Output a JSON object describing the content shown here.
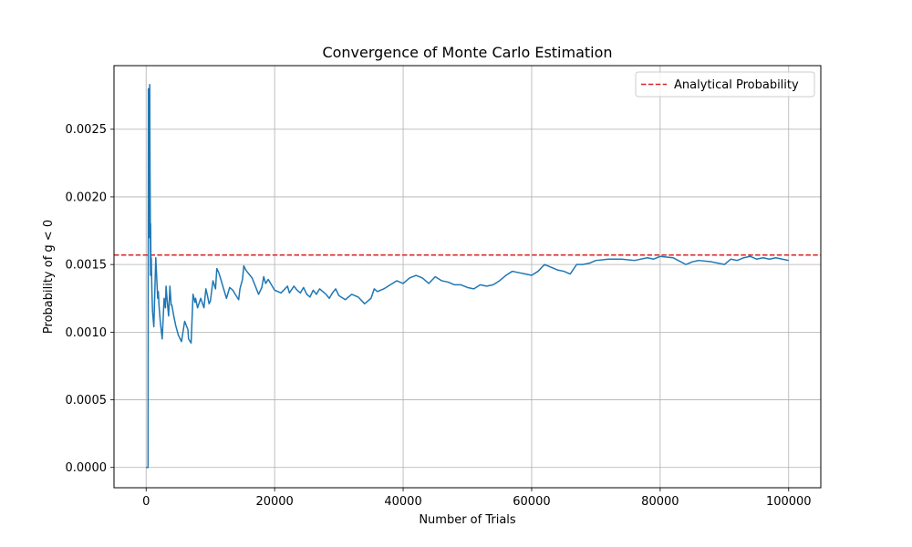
{
  "chart_data": {
    "type": "line",
    "title": "Convergence of Monte Carlo Estimation",
    "xlabel": "Number of Trials",
    "ylabel": "Probability of g < 0",
    "xlim": [
      -5000,
      105000
    ],
    "ylim": [
      -0.00015,
      0.00297
    ],
    "xticks": [
      0,
      20000,
      40000,
      60000,
      80000,
      100000
    ],
    "xtick_labels": [
      "0",
      "20000",
      "40000",
      "60000",
      "80000",
      "100000"
    ],
    "yticks": [
      0.0,
      0.0005,
      0.001,
      0.0015,
      0.002,
      0.0025
    ],
    "ytick_labels": [
      "0.0000",
      "0.0005",
      "0.0010",
      "0.0015",
      "0.0020",
      "0.0025"
    ],
    "grid": true,
    "legend_position": "top-right",
    "colors": {
      "series": "#1f77b4",
      "reference": "#d62728"
    },
    "reference_line": {
      "name": "Analytical Probability",
      "y": 0.00157,
      "style": "dashed"
    },
    "series": [
      {
        "x": [
          0,
          200,
          300,
          350,
          360,
          480,
          500,
          560,
          600,
          690,
          700,
          750,
          800,
          900,
          1000,
          1200,
          1500,
          1800,
          1900,
          2000,
          2200,
          2500,
          2800,
          3000,
          3100,
          3300,
          3500,
          3700,
          3900,
          4000,
          4300,
          4600,
          5000,
          5500,
          6000,
          6500,
          6600,
          7000,
          7300,
          7600,
          7700,
          8000,
          8500,
          9000,
          9300,
          9500,
          9800,
          10000,
          10400,
          10800,
          11000,
          11300,
          11500,
          12000,
          12500,
          13000,
          13500,
          14000,
          14400,
          14600,
          15000,
          15200,
          15500,
          16000,
          16500,
          17000,
          17500,
          18000,
          18300,
          18600,
          19000,
          19500,
          20000,
          21000,
          22000,
          22300,
          23000,
          23500,
          24000,
          24500,
          25000,
          25500,
          26000,
          26500,
          27000,
          28000,
          28500,
          29000,
          29500,
          30000,
          31000,
          32000,
          33000,
          34000,
          34500,
          35000,
          35500,
          36000,
          37000,
          38000,
          39000,
          40000,
          41000,
          42000,
          43000,
          44000,
          45000,
          46000,
          47000,
          48000,
          49000,
          50000,
          51000,
          52000,
          53000,
          54000,
          55000,
          56000,
          57000,
          58000,
          59000,
          60000,
          61000,
          62000,
          63000,
          64000,
          65000,
          66000,
          67000,
          68000,
          69000,
          70000,
          72000,
          74000,
          76000,
          78000,
          79000,
          80000,
          82000,
          84000,
          85000,
          86000,
          88000,
          90000,
          91000,
          92000,
          93000,
          94000,
          95000,
          96000,
          97000,
          98000,
          99000,
          100000
        ],
        "values": [
          0.0,
          0.0,
          0.0,
          0.0028,
          0.0028,
          0.0017,
          0.0024,
          0.00283,
          0.0023,
          0.00142,
          0.0018,
          0.0015,
          0.00155,
          0.0013,
          0.00115,
          0.00104,
          0.00155,
          0.00125,
          0.0013,
          0.0012,
          0.00108,
          0.00095,
          0.00125,
          0.00118,
          0.00134,
          0.00122,
          0.00112,
          0.00134,
          0.0012,
          0.0012,
          0.00112,
          0.00105,
          0.00098,
          0.00093,
          0.00108,
          0.00102,
          0.00095,
          0.00092,
          0.00128,
          0.00122,
          0.00125,
          0.00118,
          0.00125,
          0.00118,
          0.00132,
          0.00128,
          0.00121,
          0.00123,
          0.00138,
          0.00132,
          0.00147,
          0.00144,
          0.00141,
          0.00133,
          0.00125,
          0.00133,
          0.00131,
          0.00127,
          0.00124,
          0.00132,
          0.00139,
          0.00149,
          0.00146,
          0.00143,
          0.0014,
          0.00134,
          0.00128,
          0.00133,
          0.00141,
          0.00136,
          0.00139,
          0.00135,
          0.00131,
          0.00129,
          0.00134,
          0.00129,
          0.00134,
          0.00131,
          0.00129,
          0.00133,
          0.00128,
          0.00126,
          0.00131,
          0.00128,
          0.00132,
          0.00128,
          0.00125,
          0.00129,
          0.00132,
          0.00127,
          0.00124,
          0.00128,
          0.00126,
          0.00121,
          0.00123,
          0.00125,
          0.00132,
          0.0013,
          0.00132,
          0.00135,
          0.00138,
          0.00136,
          0.0014,
          0.00142,
          0.0014,
          0.00136,
          0.00141,
          0.00138,
          0.00137,
          0.00135,
          0.00135,
          0.00133,
          0.00132,
          0.00135,
          0.00134,
          0.00135,
          0.00138,
          0.00142,
          0.00145,
          0.00144,
          0.00143,
          0.00142,
          0.00145,
          0.0015,
          0.00148,
          0.00146,
          0.00145,
          0.00143,
          0.0015,
          0.0015,
          0.00151,
          0.00153,
          0.00154,
          0.00154,
          0.00153,
          0.00155,
          0.00154,
          0.00156,
          0.00155,
          0.0015,
          0.00152,
          0.00153,
          0.00152,
          0.0015,
          0.00154,
          0.00153,
          0.00155,
          0.00156,
          0.00154,
          0.00155,
          0.00154,
          0.00155,
          0.00154,
          0.00153
        ]
      }
    ]
  }
}
